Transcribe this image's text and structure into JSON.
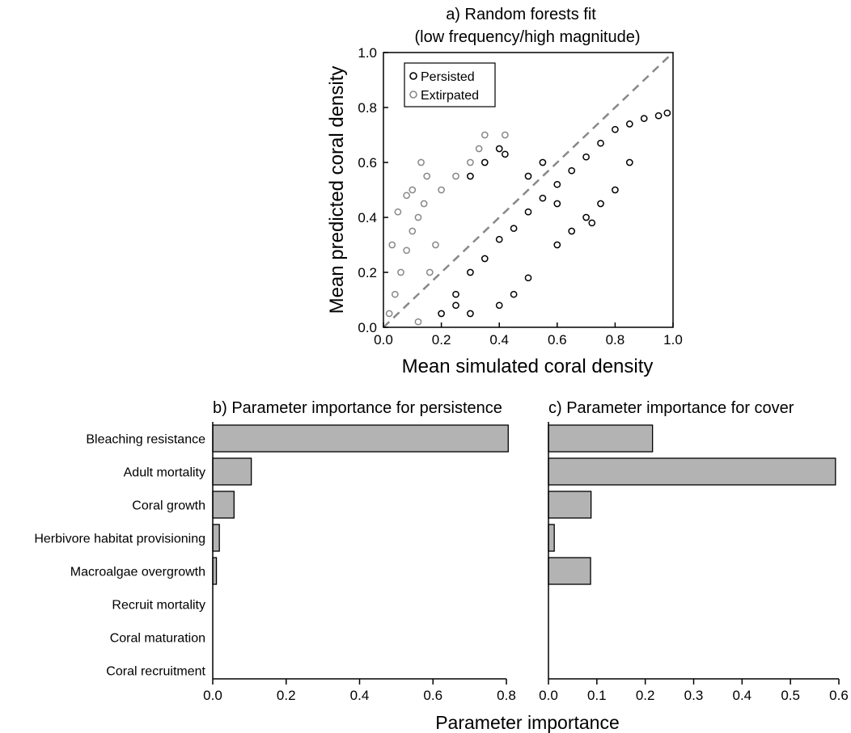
{
  "chart_data": [
    {
      "type": "scatter",
      "title": "a) Random forests fit",
      "subtitle": "(low frequency/high magnitude)",
      "xlabel": "Mean simulated coral density",
      "ylabel": "Mean predicted coral density",
      "xlim": [
        0,
        1
      ],
      "ylim": [
        0,
        1
      ],
      "xticks": [
        "0.0",
        "0.2",
        "0.4",
        "0.6",
        "0.8",
        "1.0"
      ],
      "yticks": [
        "0.0",
        "0.2",
        "0.4",
        "0.6",
        "0.8",
        "1.0"
      ],
      "grid": false,
      "legend_position": "top-left",
      "reference_line": {
        "style": "dashed",
        "color": "#888888",
        "from": [
          0,
          0
        ],
        "to": [
          1,
          1
        ]
      },
      "series": [
        {
          "name": "Persisted",
          "color": "#000000",
          "description": "dense cloud along the diagonal",
          "points": [
            [
              0.2,
              0.05
            ],
            [
              0.25,
              0.12
            ],
            [
              0.3,
              0.2
            ],
            [
              0.35,
              0.25
            ],
            [
              0.4,
              0.32
            ],
            [
              0.45,
              0.36
            ],
            [
              0.5,
              0.42
            ],
            [
              0.55,
              0.47
            ],
            [
              0.6,
              0.52
            ],
            [
              0.65,
              0.57
            ],
            [
              0.7,
              0.62
            ],
            [
              0.75,
              0.67
            ],
            [
              0.8,
              0.72
            ],
            [
              0.85,
              0.74
            ],
            [
              0.9,
              0.76
            ],
            [
              0.95,
              0.77
            ],
            [
              0.98,
              0.78
            ],
            [
              0.3,
              0.55
            ],
            [
              0.35,
              0.6
            ],
            [
              0.4,
              0.65
            ],
            [
              0.42,
              0.63
            ],
            [
              0.5,
              0.55
            ],
            [
              0.55,
              0.6
            ],
            [
              0.6,
              0.45
            ],
            [
              0.65,
              0.35
            ],
            [
              0.7,
              0.4
            ],
            [
              0.75,
              0.45
            ],
            [
              0.8,
              0.5
            ],
            [
              0.72,
              0.38
            ],
            [
              0.85,
              0.6
            ],
            [
              0.6,
              0.3
            ],
            [
              0.5,
              0.18
            ],
            [
              0.45,
              0.12
            ],
            [
              0.4,
              0.08
            ],
            [
              0.3,
              0.05
            ],
            [
              0.25,
              0.08
            ]
          ]
        },
        {
          "name": "Extirpated",
          "color": "#888888",
          "description": "dense cloud at low simulated density",
          "points": [
            [
              0.02,
              0.05
            ],
            [
              0.04,
              0.12
            ],
            [
              0.06,
              0.2
            ],
            [
              0.08,
              0.28
            ],
            [
              0.1,
              0.35
            ],
            [
              0.12,
              0.4
            ],
            [
              0.14,
              0.45
            ],
            [
              0.05,
              0.42
            ],
            [
              0.1,
              0.5
            ],
            [
              0.13,
              0.6
            ],
            [
              0.15,
              0.55
            ],
            [
              0.2,
              0.5
            ],
            [
              0.25,
              0.55
            ],
            [
              0.3,
              0.6
            ],
            [
              0.33,
              0.65
            ],
            [
              0.35,
              0.7
            ],
            [
              0.42,
              0.7
            ],
            [
              0.08,
              0.48
            ],
            [
              0.18,
              0.3
            ],
            [
              0.12,
              0.02
            ],
            [
              0.03,
              0.3
            ],
            [
              0.16,
              0.2
            ]
          ]
        }
      ]
    },
    {
      "type": "bar",
      "orientation": "horizontal",
      "title": "b) Parameter importance for persistence",
      "xlim": [
        0,
        0.8
      ],
      "xticks": [
        "0.0",
        "0.2",
        "0.4",
        "0.6",
        "0.8"
      ],
      "bar_color": "#b3b3b3",
      "categories": [
        "Bleaching resistance",
        "Adult mortality",
        "Coral growth",
        "Herbivore habitat provisioning",
        "Macroalgae overgrowth",
        "Recruit mortality",
        "Coral maturation",
        "Coral recruitment"
      ],
      "values": [
        0.805,
        0.105,
        0.058,
        0.018,
        0.01,
        0.0,
        0.0,
        0.0
      ]
    },
    {
      "type": "bar",
      "orientation": "horizontal",
      "title": "c) Parameter importance for cover",
      "xlim": [
        0,
        0.6
      ],
      "xticks": [
        "0.0",
        "0.1",
        "0.2",
        "0.3",
        "0.4",
        "0.5",
        "0.6"
      ],
      "bar_color": "#b3b3b3",
      "categories": [
        "Bleaching resistance",
        "Adult mortality",
        "Coral growth",
        "Herbivore habitat provisioning",
        "Macroalgae overgrowth",
        "Recruit mortality",
        "Coral maturation",
        "Coral recruitment"
      ],
      "values": [
        0.215,
        0.593,
        0.088,
        0.012,
        0.087,
        0.0,
        0.0,
        0.0
      ]
    }
  ],
  "shared_xlabel": "Parameter importance"
}
